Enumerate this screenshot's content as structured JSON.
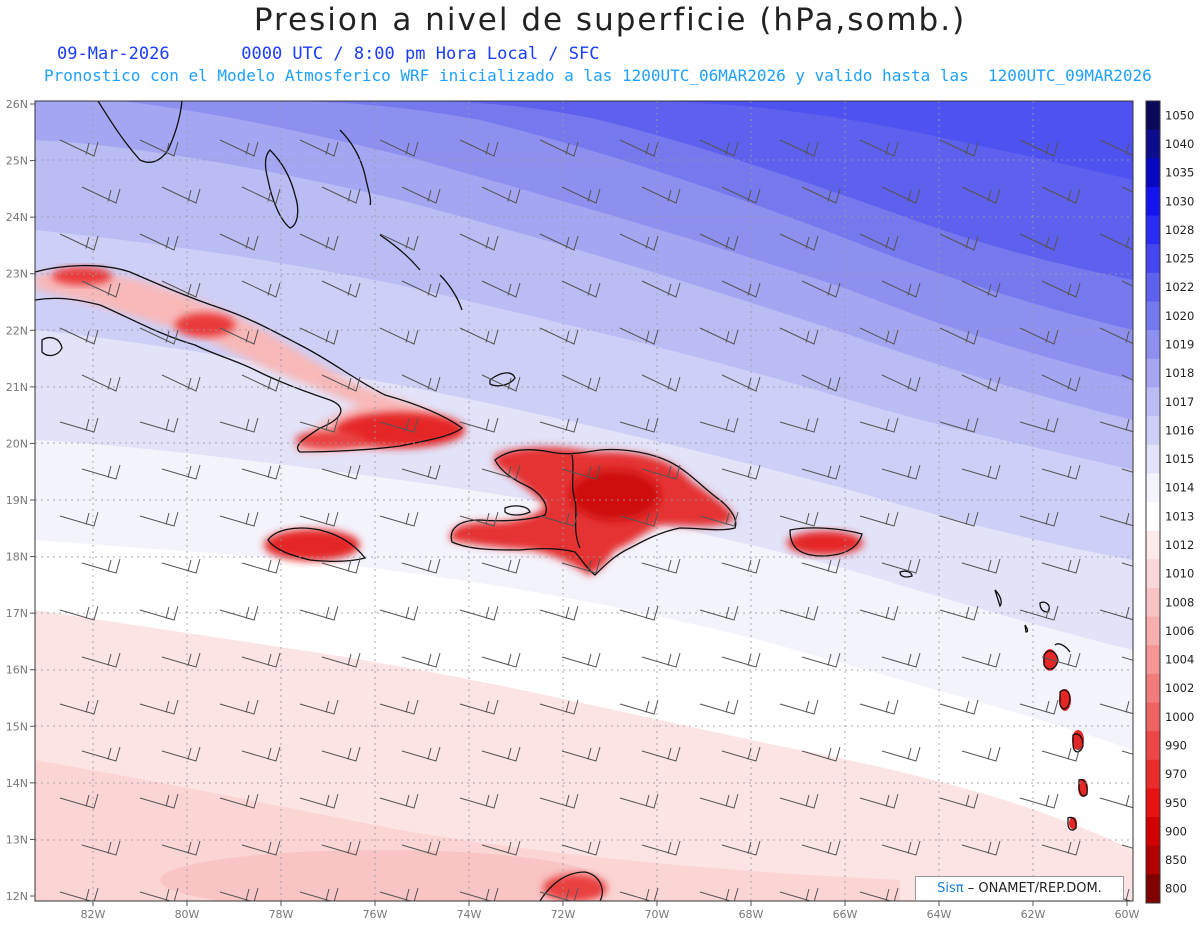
{
  "header": {
    "title": "Presion a nivel de superficie (hPa,somb.)",
    "date": "09-Mar-2026",
    "valid_time": "0000 UTC / 8:00 pm Hora Local / SFC",
    "model_info": "Pronostico con el Modelo Atmosferico WRF inicializado a las 1200UTC_06MAR2026 y valido hasta las  1200UTC_09MAR2026"
  },
  "map": {
    "lat_labels": [
      "26N",
      "25N",
      "24N",
      "23N",
      "22N",
      "21N",
      "20N",
      "19N",
      "18N",
      "17N",
      "16N",
      "15N",
      "14N",
      "13N",
      "12N"
    ],
    "lon_labels": [
      "82W",
      "80W",
      "78W",
      "76W",
      "74W",
      "72W",
      "70W",
      "68W",
      "66W",
      "64W",
      "62W",
      "60W"
    ]
  },
  "colorbar": {
    "levels": [
      "1050",
      "1040",
      "1035",
      "1030",
      "1028",
      "1025",
      "1022",
      "1020",
      "1019",
      "1018",
      "1017",
      "1016",
      "1015",
      "1014",
      "1013",
      "1012",
      "1010",
      "1008",
      "1006",
      "1004",
      "1002",
      "1000",
      "990",
      "970",
      "950",
      "900",
      "850",
      "800"
    ],
    "colors": [
      "#0a0a5a",
      "#0c0c8c",
      "#0808c0",
      "#1414f0",
      "#2c2cf4",
      "#4646f0",
      "#5e60ee",
      "#7678ee",
      "#8e90f0",
      "#a4a6f2",
      "#babcf4",
      "#cecff6",
      "#e2e2f8",
      "#f4f4fc",
      "#ffffff",
      "#fdeaea",
      "#fbd8d8",
      "#f9c4c4",
      "#f7aeae",
      "#f59696",
      "#f27c7c",
      "#ef6262",
      "#ec4646",
      "#ea2c2c",
      "#e81212",
      "#d00000",
      "#b00000",
      "#800000"
    ]
  },
  "credit": {
    "brand": "Sisπ",
    "org": "– ONAMET/REP.DOM."
  }
}
